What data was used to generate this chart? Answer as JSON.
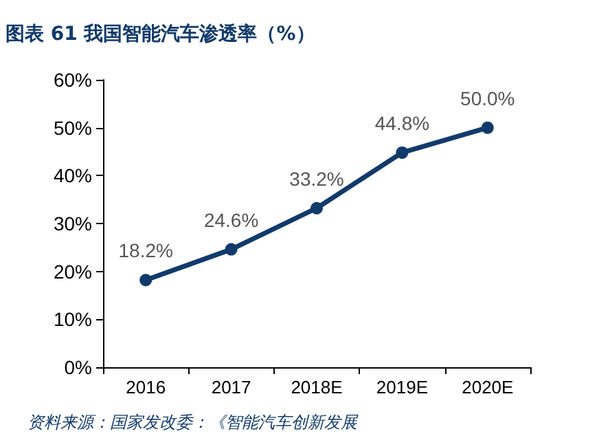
{
  "chart_data": {
    "type": "line",
    "title": "图表 61 我国智能汽车渗透率（%）",
    "annotations": [
      "资料来源：国家发改委：《智能汽车创新发展"
    ],
    "categories": [
      "2016",
      "2017",
      "2018E",
      "2019E",
      "2020E"
    ],
    "series": [
      {
        "color": "#123a6b",
        "values": [
          18.2,
          24.6,
          33.2,
          44.8,
          50.0
        ],
        "value_labels": [
          "18.2%",
          "24.6%",
          "33.2%",
          "44.8%",
          "50.0%"
        ]
      }
    ],
    "ylim": [
      0,
      60
    ],
    "yticks": [
      {
        "value": 0,
        "label": "0%"
      },
      {
        "value": 10,
        "label": "10%"
      },
      {
        "value": 20,
        "label": "20%"
      },
      {
        "value": 30,
        "label": "30%"
      },
      {
        "value": 40,
        "label": "40%"
      },
      {
        "value": 50,
        "label": "50%"
      },
      {
        "value": 60,
        "label": "60%"
      }
    ],
    "grid": false,
    "marker": "circle",
    "line_style": "solid"
  }
}
